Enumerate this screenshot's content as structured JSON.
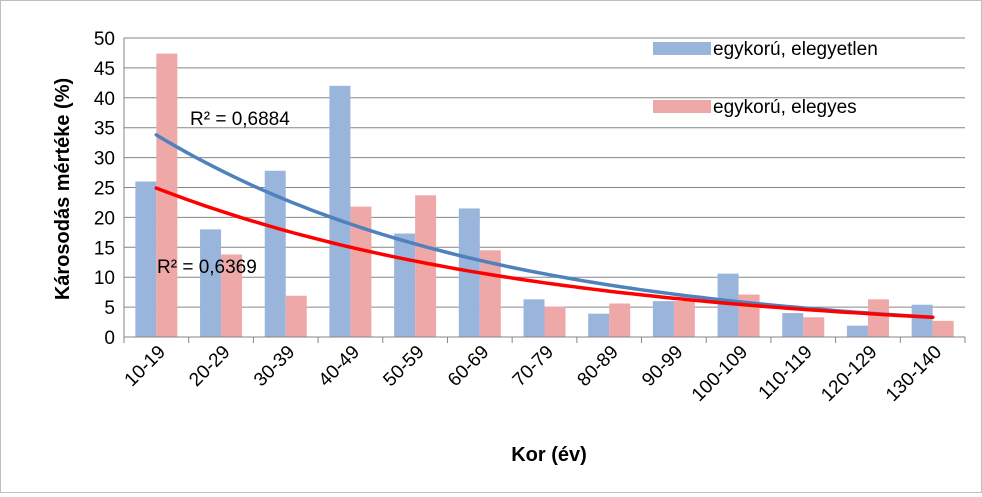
{
  "chart_data": {
    "type": "bar",
    "title": "",
    "xlabel": "Kor (év)",
    "ylabel": "Károsodás mértéke (%)",
    "ylim": [
      0,
      50
    ],
    "yticks": [
      "0",
      "5",
      "10",
      "15",
      "20",
      "25",
      "30",
      "35",
      "40",
      "45",
      "50"
    ],
    "categories": [
      "10-19",
      "20-29",
      "30-39",
      "40-49",
      "50-59",
      "60-69",
      "70-79",
      "80-89",
      "90-99",
      "100-109",
      "110-119",
      "120-129",
      "130-140"
    ],
    "series": [
      {
        "name": "egykorú, elegyetlen",
        "values": [
          26,
          18,
          27.8,
          42,
          17.3,
          21.5,
          6.3,
          3.9,
          6,
          10.6,
          4,
          1.9,
          5.4
        ],
        "color": "#9ab5dc"
      },
      {
        "name": "egykorú, elegyes",
        "values": [
          47.4,
          13.8,
          6.9,
          21.8,
          23.7,
          14.5,
          5.1,
          5.6,
          6,
          7.1,
          3.3,
          6.3,
          2.7
        ],
        "color": "#eea8a8"
      }
    ],
    "trendlines": [
      {
        "series": "egykorú, elegyetlen",
        "type": "exponential",
        "label": "R² = 0,6884",
        "color": "#4f81bd",
        "start": 33.8,
        "end": 3.3
      },
      {
        "series": "egykorú, elegyes",
        "type": "exponential",
        "label": "R² = 0,6369",
        "color": "#ff0000",
        "start": 24.9,
        "end": 3.3
      }
    ],
    "grid": true,
    "legend_position": "top-right"
  }
}
